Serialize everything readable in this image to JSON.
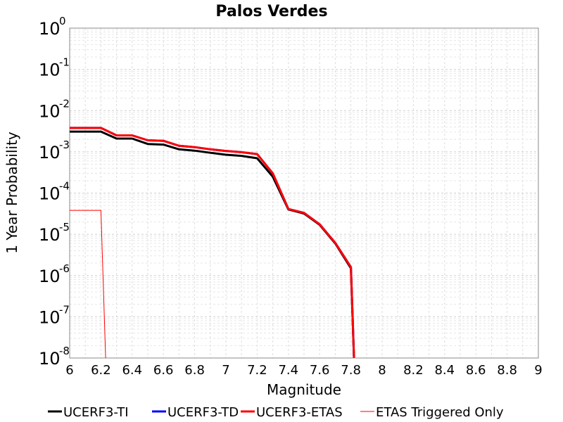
{
  "chart_data": {
    "type": "line",
    "title": "Palos Verdes",
    "xlabel": "Magnitude",
    "ylabel": "1 Year Probability",
    "xlim": [
      6,
      9
    ],
    "ylim": [
      1e-08,
      1
    ],
    "yscale": "log",
    "grid": true,
    "legend_placement": "bottom",
    "x_ticks": [
      "6",
      "6.2",
      "6.4",
      "6.6",
      "6.8",
      "7",
      "7.2",
      "7.4",
      "7.6",
      "7.8",
      "8",
      "8.2",
      "8.4",
      "8.6",
      "8.8",
      "9"
    ],
    "y_ticks": [
      {
        "base": "10",
        "exp": "0"
      },
      {
        "base": "10",
        "exp": "-1"
      },
      {
        "base": "10",
        "exp": "-2"
      },
      {
        "base": "10",
        "exp": "-3"
      },
      {
        "base": "10",
        "exp": "-4"
      },
      {
        "base": "10",
        "exp": "-5"
      },
      {
        "base": "10",
        "exp": "-6"
      },
      {
        "base": "10",
        "exp": "-7"
      },
      {
        "base": "10",
        "exp": "-8"
      }
    ],
    "series": [
      {
        "name": "UCERF3-TI",
        "color": "#000000",
        "width": 3,
        "x": [
          6.0,
          6.2,
          6.3,
          6.4,
          6.5,
          6.6,
          6.7,
          6.8,
          6.9,
          7.0,
          7.1,
          7.2,
          7.3,
          7.4,
          7.5,
          7.6,
          7.7,
          7.8,
          7.82
        ],
        "y": [
          0.0031,
          0.0031,
          0.0021,
          0.0021,
          0.00155,
          0.0015,
          0.00115,
          0.00107,
          0.00095,
          0.00085,
          0.0008,
          0.0007,
          0.00025,
          4e-05,
          3.2e-05,
          1.7e-05,
          6e-06,
          1.5e-06,
          1e-08
        ]
      },
      {
        "name": "UCERF3-TD",
        "color": "#0000ff",
        "width": 3,
        "x": [
          6.0,
          6.2,
          6.3,
          6.4,
          6.5,
          6.6,
          6.7,
          6.8,
          6.9,
          7.0,
          7.1,
          7.2,
          7.3,
          7.4,
          7.5,
          7.6,
          7.7,
          7.8,
          7.82
        ],
        "y": [
          0.0038,
          0.0038,
          0.0025,
          0.0025,
          0.0019,
          0.00185,
          0.0014,
          0.0013,
          0.00115,
          0.00105,
          0.00098,
          0.00088,
          0.0003,
          4.1e-05,
          3.3e-05,
          1.75e-05,
          6.2e-06,
          1.6e-06,
          1e-08
        ]
      },
      {
        "name": "UCERF3-ETAS",
        "color": "#ff0000",
        "width": 3,
        "x": [
          6.0,
          6.2,
          6.3,
          6.4,
          6.5,
          6.6,
          6.7,
          6.8,
          6.9,
          7.0,
          7.1,
          7.2,
          7.3,
          7.4,
          7.5,
          7.6,
          7.7,
          7.8,
          7.82
        ],
        "y": [
          0.0038,
          0.0038,
          0.0025,
          0.0025,
          0.0019,
          0.00185,
          0.0014,
          0.0013,
          0.00115,
          0.00105,
          0.00098,
          0.00088,
          0.0003,
          4.1e-05,
          3.3e-05,
          1.75e-05,
          6.2e-06,
          1.6e-06,
          1e-08
        ]
      },
      {
        "name": "ETAS Triggered Only",
        "color": "#ff0000",
        "width": 1,
        "x": [
          6.0,
          6.2,
          6.23
        ],
        "y": [
          3.8e-05,
          3.8e-05,
          1e-08
        ]
      }
    ]
  }
}
